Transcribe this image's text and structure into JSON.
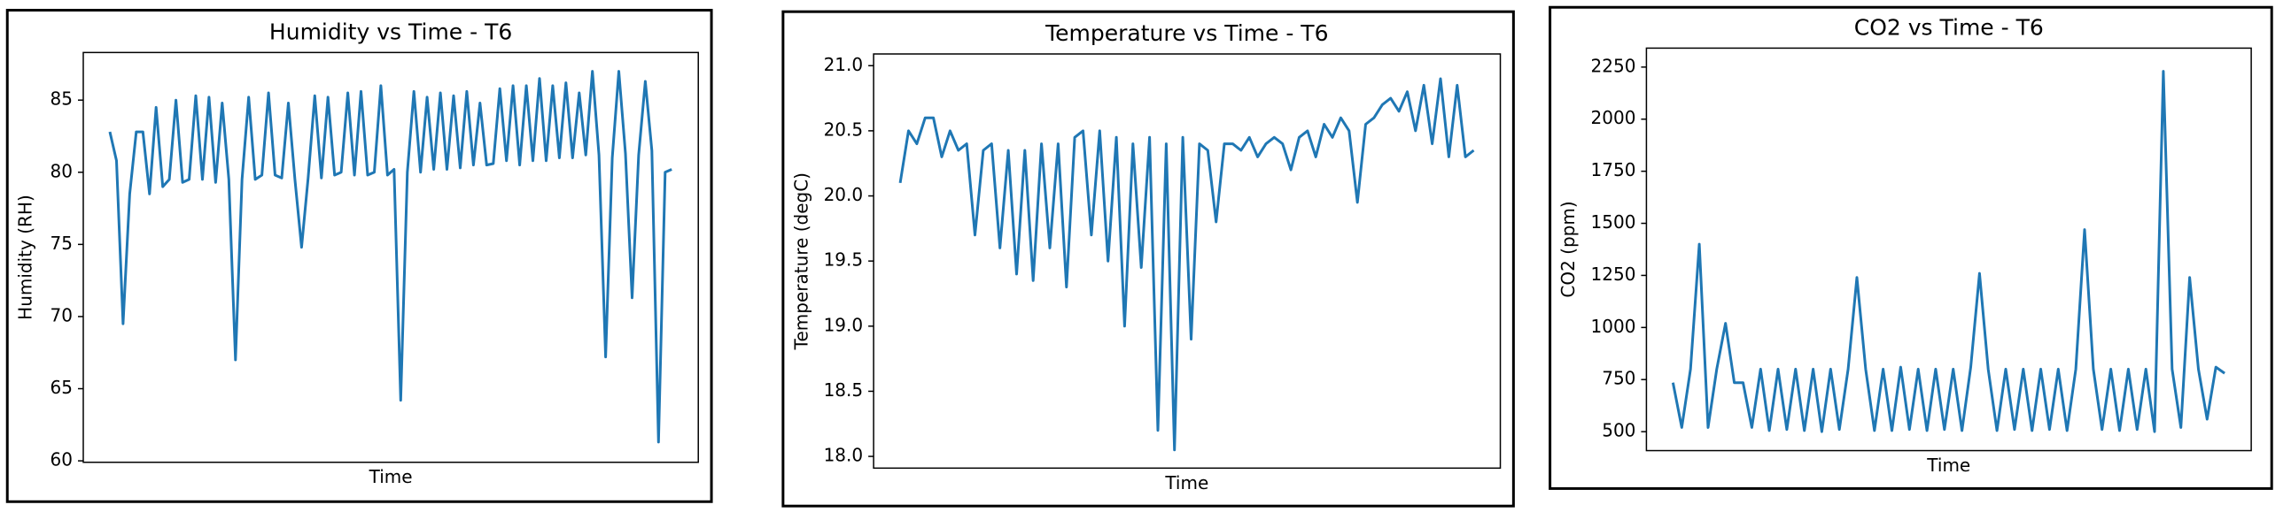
{
  "chart_data": [
    {
      "type": "line",
      "title": "Humidity vs Time - T6",
      "xlabel": "Time",
      "ylabel": "Humidity (RH)",
      "color": "#1f77b4",
      "ylim": [
        59.9,
        88.3
      ],
      "yticks": [
        60,
        65,
        70,
        75,
        80,
        85
      ],
      "values": [
        82.8,
        80.8,
        69.5,
        78.5,
        82.8,
        82.8,
        78.5,
        84.5,
        79,
        79.5,
        85,
        79.3,
        79.5,
        85.3,
        79.5,
        85.2,
        79.3,
        84.8,
        79.5,
        67,
        79.5,
        85.2,
        79.5,
        79.8,
        85.5,
        79.8,
        79.6,
        84.8,
        79.5,
        74.8,
        79.6,
        85.3,
        79.6,
        85.2,
        79.8,
        80,
        85.5,
        79.8,
        85.6,
        79.8,
        80,
        86,
        79.8,
        80.2,
        64.2,
        80,
        85.6,
        80,
        85.2,
        80.2,
        85.5,
        80.2,
        85.3,
        80.3,
        85.6,
        80.5,
        84.8,
        80.5,
        80.6,
        85.8,
        80.8,
        86,
        80.5,
        86,
        80.8,
        86.5,
        80.8,
        86,
        81,
        86.2,
        81,
        85.5,
        81.2,
        87,
        81.2,
        67.2,
        81,
        87,
        81.3,
        71.3,
        81.2,
        86.3,
        81.5,
        61.3,
        80,
        80.2
      ]
    },
    {
      "type": "line",
      "title": "Temperature vs Time - T6",
      "xlabel": "Time",
      "ylabel": "Temperature (degC)",
      "color": "#1f77b4",
      "ylim": [
        17.91,
        21.09
      ],
      "yticks": [
        {
          "value": 18,
          "label": "18.0"
        },
        18.5,
        {
          "value": 19,
          "label": "19.0"
        },
        19.5,
        {
          "value": 20,
          "label": "20.0"
        },
        20.5,
        {
          "value": 21,
          "label": "21.0"
        }
      ],
      "values": [
        20.1,
        20.5,
        20.4,
        20.6,
        20.6,
        20.3,
        20.5,
        20.35,
        20.4,
        19.7,
        20.35,
        20.4,
        19.6,
        20.35,
        19.4,
        20.35,
        19.35,
        20.4,
        19.6,
        20.4,
        19.3,
        20.45,
        20.5,
        19.7,
        20.5,
        19.5,
        20.45,
        19.0,
        20.4,
        19.45,
        20.45,
        18.2,
        20.4,
        18.05,
        20.45,
        18.9,
        20.4,
        20.35,
        19.8,
        20.4,
        20.4,
        20.35,
        20.45,
        20.3,
        20.4,
        20.45,
        20.4,
        20.2,
        20.45,
        20.5,
        20.3,
        20.55,
        20.45,
        20.6,
        20.5,
        19.95,
        20.55,
        20.6,
        20.7,
        20.75,
        20.65,
        20.8,
        20.5,
        20.85,
        20.4,
        20.9,
        20.3,
        20.85,
        20.3,
        20.35
      ]
    },
    {
      "type": "line",
      "title": "CO2 vs Time - T6",
      "xlabel": "Time",
      "ylabel": "CO2 (ppm)",
      "color": "#1f77b4",
      "ylim": [
        409,
        2341
      ],
      "yticks": [
        500,
        750,
        1000,
        1250,
        1500,
        1750,
        2000,
        2250
      ],
      "values": [
        735,
        520,
        800,
        1400,
        520,
        800,
        1020,
        735,
        735,
        520,
        800,
        505,
        800,
        510,
        800,
        505,
        800,
        500,
        800,
        510,
        800,
        1240,
        800,
        505,
        800,
        505,
        810,
        510,
        800,
        505,
        800,
        510,
        800,
        505,
        810,
        1260,
        800,
        505,
        800,
        510,
        800,
        505,
        800,
        510,
        800,
        505,
        800,
        1470,
        800,
        510,
        800,
        505,
        800,
        510,
        800,
        500,
        2230,
        800,
        520,
        1240,
        800,
        560,
        810,
        780
      ]
    }
  ]
}
